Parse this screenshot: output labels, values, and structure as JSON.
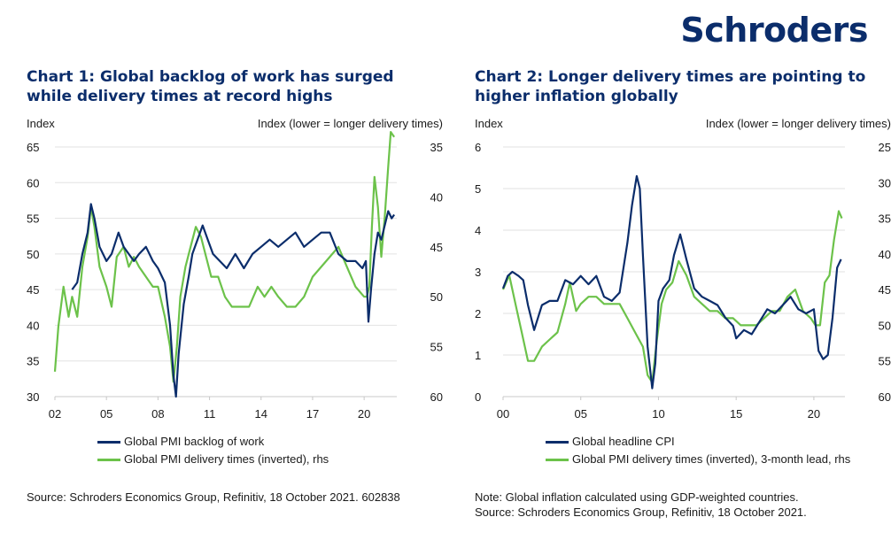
{
  "brand": "Schroders",
  "colors": {
    "navy": "#0b2d6b",
    "green": "#6cc24a",
    "grid": "#e2e2e2"
  },
  "chart1": {
    "title": "Chart 1: Global backlog of work has surged while delivery times at record highs",
    "left_axis_label": "Index",
    "right_axis_label": "Index (lower = longer delivery times)",
    "legend": [
      "Global PMI backlog of work",
      "Global PMI delivery times (inverted), rhs"
    ],
    "source": "Source: Schroders Economics Group, Refinitiv, 18 October 2021. 602838"
  },
  "chart2": {
    "title": "Chart 2: Longer delivery times are pointing to higher inflation globally",
    "left_axis_label": "Index",
    "right_axis_label": "Index (lower = longer delivery times)",
    "legend": [
      "Global headline CPI",
      "Global PMI delivery times (inverted), 3-month lead, rhs"
    ],
    "note": "Note: Global inflation calculated using GDP-weighted countries.",
    "source": "Source: Schroders Economics Group, Refinitiv, 18 October 2021."
  },
  "chart_data": [
    {
      "type": "line",
      "title": "Chart 1: Global backlog of work has surged while delivery times at record highs",
      "ylabel": "Index",
      "ylabel_right": "Index (lower = longer delivery times)",
      "ylim": [
        30,
        65
      ],
      "ylim_right": [
        60,
        35
      ],
      "right_inverted": true,
      "yticks": [
        30,
        35,
        40,
        45,
        50,
        55,
        60,
        65
      ],
      "yticks_right": [
        60,
        55,
        50,
        45,
        40,
        35
      ],
      "xlim": [
        2002,
        2021.9
      ],
      "xticks": [
        2002,
        2005,
        2008,
        2011,
        2014,
        2017,
        2020
      ],
      "xtick_labels": [
        "02",
        "05",
        "08",
        "11",
        "14",
        "17",
        "20"
      ],
      "series": [
        {
          "name": "Global PMI backlog of work",
          "axis": "left",
          "color": "#0b2d6b",
          "x": [
            2003.0,
            2003.3,
            2003.6,
            2003.9,
            2004.1,
            2004.3,
            2004.6,
            2005.0,
            2005.3,
            2005.7,
            2006.0,
            2006.3,
            2006.6,
            2006.9,
            2007.3,
            2007.7,
            2008.0,
            2008.4,
            2008.7,
            2008.9,
            2009.05,
            2009.2,
            2009.5,
            2009.8,
            2010.0,
            2010.3,
            2010.6,
            2010.9,
            2011.2,
            2011.6,
            2012.0,
            2012.5,
            2013.0,
            2013.5,
            2014.0,
            2014.5,
            2015.0,
            2015.5,
            2016.0,
            2016.5,
            2017.0,
            2017.5,
            2018.0,
            2018.5,
            2019.0,
            2019.5,
            2019.9,
            2020.1,
            2020.25,
            2020.4,
            2020.6,
            2020.8,
            2021.0,
            2021.2,
            2021.4,
            2021.6,
            2021.75
          ],
          "values": [
            45,
            46,
            50,
            53,
            57,
            55,
            51,
            49,
            50,
            53,
            51,
            50,
            49,
            50,
            51,
            49,
            48,
            46,
            40,
            33,
            30,
            36,
            43,
            47,
            50,
            52,
            54,
            52,
            50,
            49,
            48,
            50,
            48,
            50,
            51,
            52,
            51,
            52,
            53,
            51,
            52,
            53,
            53,
            50,
            49,
            49,
            48,
            49,
            40.5,
            45,
            50,
            53,
            52,
            54,
            56,
            55,
            55.5
          ]
        },
        {
          "name": "Global PMI delivery times (inverted), rhs",
          "axis": "right",
          "color": "#6cc24a",
          "x": [
            2002.0,
            2002.2,
            2002.5,
            2002.8,
            2003.0,
            2003.3,
            2003.6,
            2003.9,
            2004.1,
            2004.3,
            2004.6,
            2005.0,
            2005.3,
            2005.6,
            2006.0,
            2006.3,
            2006.6,
            2006.9,
            2007.3,
            2007.7,
            2008.0,
            2008.4,
            2008.7,
            2008.9,
            2009.1,
            2009.3,
            2009.6,
            2009.9,
            2010.2,
            2010.5,
            2010.8,
            2011.1,
            2011.5,
            2011.9,
            2012.3,
            2012.8,
            2013.3,
            2013.8,
            2014.2,
            2014.6,
            2015.0,
            2015.5,
            2016.0,
            2016.5,
            2017.0,
            2017.5,
            2018.0,
            2018.5,
            2019.0,
            2019.5,
            2020.0,
            2020.15,
            2020.3,
            2020.45,
            2020.6,
            2020.8,
            2021.0,
            2021.2,
            2021.4,
            2021.55,
            2021.75
          ],
          "values": [
            57.5,
            53,
            49,
            52,
            50,
            52,
            47,
            44,
            41,
            43,
            47,
            49,
            51,
            46,
            45,
            47,
            46,
            47,
            48,
            49,
            49,
            52,
            55,
            58.5,
            55,
            50,
            47,
            45,
            43,
            44,
            46,
            48,
            48,
            50,
            51,
            51,
            51,
            49,
            50,
            49,
            50,
            51,
            51,
            50,
            48,
            47,
            46,
            45,
            47,
            49,
            50,
            50,
            49,
            43,
            38,
            41,
            46,
            42,
            37,
            33.5,
            34
          ]
        }
      ]
    },
    {
      "type": "line",
      "title": "Chart 2: Longer delivery times are pointing to higher inflation globally",
      "ylabel": "Index",
      "ylabel_right": "Index (lower = longer delivery times)",
      "ylim": [
        0,
        6
      ],
      "ylim_right": [
        60,
        25
      ],
      "right_inverted": true,
      "yticks": [
        0,
        1,
        2,
        3,
        4,
        5,
        6
      ],
      "yticks_right": [
        60,
        55,
        50,
        45,
        40,
        35,
        30,
        25
      ],
      "xlim": [
        2000,
        2022
      ],
      "xticks": [
        2000,
        2005,
        2010,
        2015,
        2020
      ],
      "xtick_labels": [
        "00",
        "05",
        "10",
        "15",
        "20"
      ],
      "series": [
        {
          "name": "Global headline CPI",
          "axis": "left",
          "color": "#0b2d6b",
          "x": [
            2000.0,
            2000.3,
            2000.6,
            2001.0,
            2001.3,
            2001.6,
            2002.0,
            2002.5,
            2003.0,
            2003.5,
            2004.0,
            2004.5,
            2005.0,
            2005.5,
            2006.0,
            2006.5,
            2007.0,
            2007.5,
            2008.0,
            2008.3,
            2008.6,
            2008.8,
            2009.0,
            2009.3,
            2009.6,
            2009.8,
            2010.0,
            2010.3,
            2010.7,
            2011.0,
            2011.4,
            2011.8,
            2012.3,
            2012.8,
            2013.3,
            2013.8,
            2014.3,
            2014.8,
            2015.0,
            2015.5,
            2016.0,
            2016.5,
            2017.0,
            2017.5,
            2018.0,
            2018.5,
            2019.0,
            2019.5,
            2020.0,
            2020.3,
            2020.6,
            2020.9,
            2021.2,
            2021.5,
            2021.75
          ],
          "values": [
            2.6,
            2.9,
            3.0,
            2.9,
            2.8,
            2.2,
            1.6,
            2.2,
            2.3,
            2.3,
            2.8,
            2.7,
            2.9,
            2.7,
            2.9,
            2.4,
            2.3,
            2.5,
            3.7,
            4.6,
            5.3,
            5.0,
            3.4,
            1.2,
            0.2,
            0.8,
            2.3,
            2.6,
            2.8,
            3.4,
            3.9,
            3.3,
            2.6,
            2.4,
            2.3,
            2.2,
            1.9,
            1.7,
            1.4,
            1.6,
            1.5,
            1.8,
            2.1,
            2.0,
            2.2,
            2.4,
            2.1,
            2.0,
            2.1,
            1.1,
            0.9,
            1.0,
            1.9,
            3.1,
            3.3
          ]
        },
        {
          "name": "Global PMI delivery times (inverted), 3-month lead, rhs",
          "axis": "right",
          "color": "#6cc24a",
          "x": [
            2000.0,
            2000.4,
            2000.8,
            2001.2,
            2001.6,
            2002.0,
            2002.5,
            2003.0,
            2003.5,
            2004.0,
            2004.3,
            2004.7,
            2005.0,
            2005.5,
            2006.0,
            2006.5,
            2007.0,
            2007.5,
            2008.0,
            2008.5,
            2009.0,
            2009.3,
            2009.6,
            2009.9,
            2010.2,
            2010.5,
            2010.9,
            2011.3,
            2011.8,
            2012.3,
            2012.8,
            2013.3,
            2013.8,
            2014.3,
            2014.8,
            2015.3,
            2015.8,
            2016.3,
            2016.8,
            2017.3,
            2017.8,
            2018.3,
            2018.8,
            2019.3,
            2019.8,
            2020.1,
            2020.4,
            2020.7,
            2021.0,
            2021.3,
            2021.6,
            2021.8
          ],
          "values": [
            45,
            43,
            47,
            51,
            55,
            55,
            53,
            52,
            51,
            47,
            44,
            48,
            47,
            46,
            46,
            47,
            47,
            47,
            49,
            51,
            53,
            57,
            58,
            52,
            47,
            45,
            44,
            41,
            43,
            46,
            47,
            48,
            48,
            49,
            49,
            50,
            50,
            50,
            49,
            48,
            48,
            46,
            45,
            48,
            49,
            50,
            50,
            44,
            43,
            38,
            34,
            35
          ]
        }
      ]
    }
  ]
}
